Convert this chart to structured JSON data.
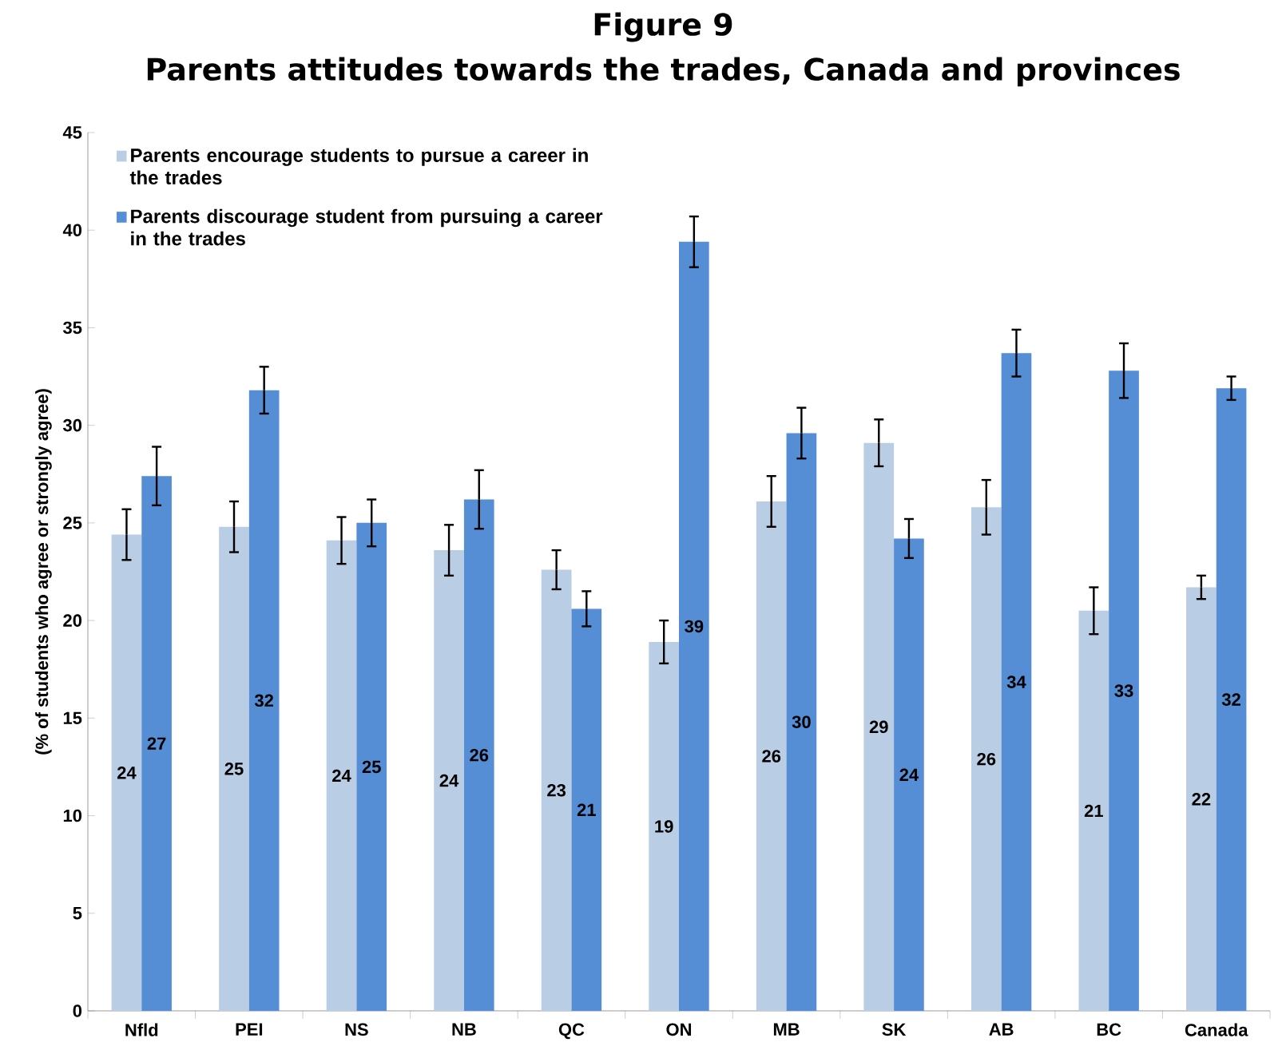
{
  "chart_data": {
    "type": "bar",
    "title": "Figure 9",
    "subtitle": "Parents attitudes towards the trades, Canada and provinces",
    "ylabel": "(% of students who agree or strongly agree)",
    "categories": [
      "Nfld",
      "PEI",
      "NS",
      "NB",
      "QC",
      "ON",
      "MB",
      "SK",
      "AB",
      "BC",
      "Canada"
    ],
    "series": [
      {
        "name": "Parents encourage students to pursue a career in the trades",
        "color": "#b9cde5",
        "values": [
          24.4,
          24.8,
          24.1,
          23.6,
          22.6,
          18.9,
          26.1,
          29.1,
          25.8,
          20.5,
          21.7
        ],
        "errors": [
          1.3,
          1.3,
          1.2,
          1.3,
          1.0,
          1.1,
          1.3,
          1.2,
          1.4,
          1.2,
          0.6
        ],
        "value_labels": [
          "24",
          "25",
          "24",
          "24",
          "23",
          "19",
          "26",
          "29",
          "26",
          "21",
          "22"
        ]
      },
      {
        "name": "Parents discourage student from pursuing a career in the trades",
        "color": "#558ed5",
        "values": [
          27.4,
          31.8,
          25.0,
          26.2,
          20.6,
          39.4,
          29.6,
          24.2,
          33.7,
          32.8,
          31.9
        ],
        "errors": [
          1.5,
          1.2,
          1.2,
          1.5,
          0.9,
          1.3,
          1.3,
          1.0,
          1.2,
          1.4,
          0.6
        ],
        "value_labels": [
          "27",
          "32",
          "25",
          "26",
          "21",
          "39",
          "30",
          "24",
          "34",
          "33",
          "32"
        ]
      }
    ],
    "ylim": [
      0,
      45
    ],
    "yticks": [
      0,
      5,
      10,
      15,
      20,
      25,
      30,
      35,
      40,
      45
    ],
    "grid": false,
    "legend": "top left"
  }
}
